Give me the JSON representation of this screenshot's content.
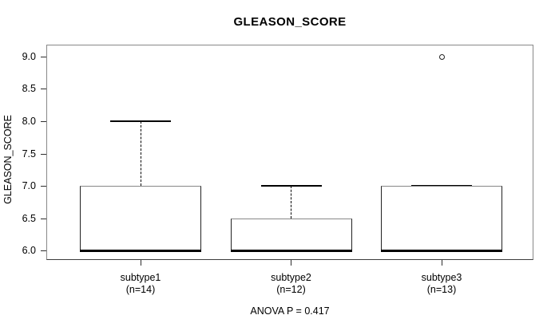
{
  "chart_data": {
    "type": "boxplot",
    "title": "GLEASON_SCORE",
    "ylabel": "GLEASON_SCORE",
    "annotation": "ANOVA P = 0.417",
    "ylim": [
      5.88,
      9.12
    ],
    "yticks": [
      6.0,
      6.5,
      7.0,
      7.5,
      8.0,
      8.5,
      9.0
    ],
    "ytick_labels": [
      "6.0",
      "6.5",
      "7.0",
      "7.5",
      "8.0",
      "8.5",
      "9.0"
    ],
    "grid": false,
    "legend": "none",
    "groups": [
      {
        "label": "subtype1",
        "n_label": "(n=14)",
        "n": 14,
        "q1": 6.0,
        "median": 6.0,
        "q3": 7.0,
        "whisker_low": 6.0,
        "whisker_high": 8.0,
        "outliers": []
      },
      {
        "label": "subtype2",
        "n_label": "(n=12)",
        "n": 12,
        "q1": 6.0,
        "median": 6.0,
        "q3": 6.5,
        "whisker_low": 6.0,
        "whisker_high": 7.0,
        "outliers": []
      },
      {
        "label": "subtype3",
        "n_label": "(n=13)",
        "n": 13,
        "q1": 6.0,
        "median": 6.0,
        "q3": 7.0,
        "whisker_low": 6.0,
        "whisker_high": 7.0,
        "outliers": [
          9.0
        ]
      }
    ],
    "colors": {
      "line": "#000000",
      "box_border_top": "#888888",
      "box_border_side": "#222222",
      "plot_border": "#888888",
      "background": "#ffffff"
    }
  }
}
